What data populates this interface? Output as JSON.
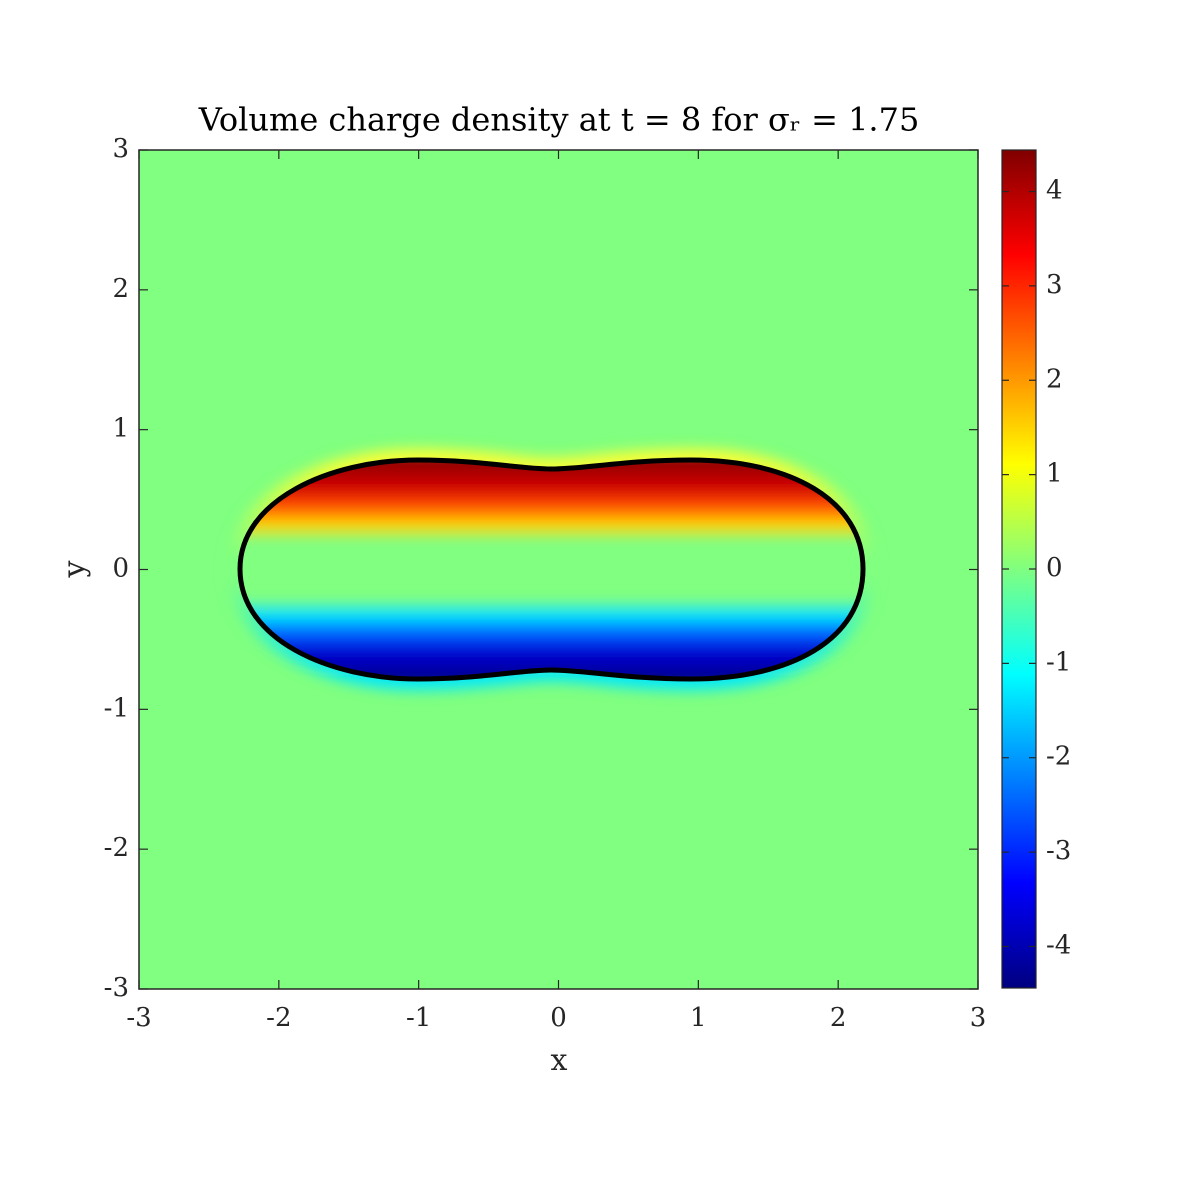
{
  "chart_data": {
    "type": "field",
    "title": "Volume charge density at t = 8 for σᵣ = 1.75",
    "x_label": "x",
    "y_label": "y",
    "xlim": [
      -3,
      3
    ],
    "xticks": [
      -3,
      -2,
      -1,
      0,
      1,
      2,
      3
    ],
    "ylim": [
      -3,
      3
    ],
    "yticks": [
      -3,
      -2,
      -1,
      0,
      1,
      2,
      3
    ],
    "colormap": "jet",
    "clim": [
      -4.44,
      4.44
    ],
    "cticks": [
      -4,
      -3,
      -2,
      -1,
      0,
      1,
      2,
      3,
      4
    ]
  }
}
